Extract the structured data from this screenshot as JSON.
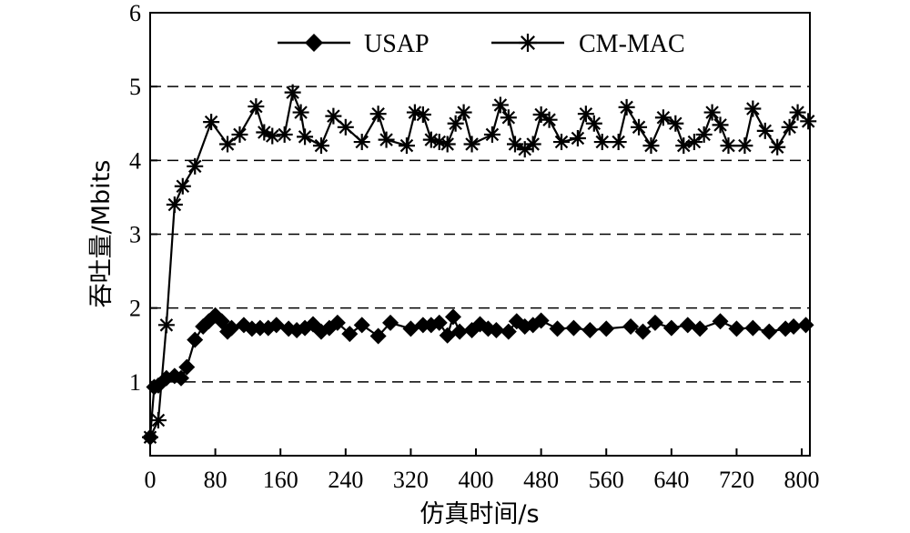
{
  "chart_data": {
    "type": "line",
    "title": "",
    "xlabel": "仿真时间/s",
    "ylabel": "吞吐量/Mbits",
    "xlim": [
      0,
      810
    ],
    "ylim": [
      0,
      6
    ],
    "xticks": [
      0,
      80,
      160,
      240,
      320,
      400,
      480,
      560,
      640,
      720,
      800
    ],
    "yticks": [
      1,
      2,
      3,
      4,
      5,
      6
    ],
    "grid": "horizontal-dashed",
    "legend_position": "top",
    "series": [
      {
        "name": "USAP",
        "marker": "diamond",
        "color": "#000000",
        "points": [
          [
            0,
            0.25
          ],
          [
            5,
            0.93
          ],
          [
            10,
            0.95
          ],
          [
            20,
            1.05
          ],
          [
            30,
            1.08
          ],
          [
            38,
            1.05
          ],
          [
            45,
            1.2
          ],
          [
            55,
            1.57
          ],
          [
            65,
            1.75
          ],
          [
            72,
            1.82
          ],
          [
            80,
            1.9
          ],
          [
            88,
            1.82
          ],
          [
            95,
            1.68
          ],
          [
            100,
            1.73
          ],
          [
            115,
            1.77
          ],
          [
            125,
            1.72
          ],
          [
            135,
            1.73
          ],
          [
            145,
            1.73
          ],
          [
            155,
            1.77
          ],
          [
            170,
            1.72
          ],
          [
            180,
            1.7
          ],
          [
            190,
            1.73
          ],
          [
            200,
            1.78
          ],
          [
            210,
            1.68
          ],
          [
            220,
            1.73
          ],
          [
            230,
            1.8
          ],
          [
            245,
            1.65
          ],
          [
            260,
            1.77
          ],
          [
            280,
            1.62
          ],
          [
            295,
            1.8
          ],
          [
            320,
            1.72
          ],
          [
            335,
            1.77
          ],
          [
            345,
            1.77
          ],
          [
            355,
            1.8
          ],
          [
            365,
            1.63
          ],
          [
            372,
            1.88
          ],
          [
            380,
            1.68
          ],
          [
            395,
            1.7
          ],
          [
            405,
            1.78
          ],
          [
            415,
            1.72
          ],
          [
            425,
            1.7
          ],
          [
            440,
            1.68
          ],
          [
            450,
            1.82
          ],
          [
            460,
            1.75
          ],
          [
            470,
            1.77
          ],
          [
            480,
            1.83
          ],
          [
            500,
            1.72
          ],
          [
            520,
            1.73
          ],
          [
            540,
            1.7
          ],
          [
            560,
            1.72
          ],
          [
            590,
            1.75
          ],
          [
            605,
            1.68
          ],
          [
            620,
            1.8
          ],
          [
            640,
            1.73
          ],
          [
            660,
            1.77
          ],
          [
            675,
            1.72
          ],
          [
            700,
            1.82
          ],
          [
            720,
            1.72
          ],
          [
            740,
            1.73
          ],
          [
            760,
            1.68
          ],
          [
            780,
            1.72
          ],
          [
            790,
            1.75
          ],
          [
            805,
            1.77
          ]
        ]
      },
      {
        "name": "CM-MAC",
        "marker": "asterisk",
        "color": "#000000",
        "points": [
          [
            0,
            0.25
          ],
          [
            10,
            0.48
          ],
          [
            20,
            1.77
          ],
          [
            30,
            3.4
          ],
          [
            40,
            3.65
          ],
          [
            55,
            3.92
          ],
          [
            75,
            4.52
          ],
          [
            95,
            4.22
          ],
          [
            110,
            4.35
          ],
          [
            130,
            4.73
          ],
          [
            140,
            4.38
          ],
          [
            150,
            4.33
          ],
          [
            165,
            4.35
          ],
          [
            175,
            4.92
          ],
          [
            185,
            4.65
          ],
          [
            190,
            4.32
          ],
          [
            210,
            4.2
          ],
          [
            225,
            4.6
          ],
          [
            240,
            4.45
          ],
          [
            260,
            4.25
          ],
          [
            280,
            4.63
          ],
          [
            290,
            4.28
          ],
          [
            315,
            4.2
          ],
          [
            325,
            4.65
          ],
          [
            335,
            4.62
          ],
          [
            345,
            4.28
          ],
          [
            355,
            4.25
          ],
          [
            365,
            4.22
          ],
          [
            375,
            4.5
          ],
          [
            385,
            4.65
          ],
          [
            395,
            4.22
          ],
          [
            420,
            4.35
          ],
          [
            430,
            4.75
          ],
          [
            440,
            4.58
          ],
          [
            448,
            4.22
          ],
          [
            460,
            4.15
          ],
          [
            470,
            4.22
          ],
          [
            480,
            4.62
          ],
          [
            490,
            4.55
          ],
          [
            505,
            4.25
          ],
          [
            525,
            4.3
          ],
          [
            535,
            4.63
          ],
          [
            545,
            4.5
          ],
          [
            555,
            4.25
          ],
          [
            575,
            4.25
          ],
          [
            585,
            4.72
          ],
          [
            600,
            4.45
          ],
          [
            615,
            4.2
          ],
          [
            630,
            4.58
          ],
          [
            645,
            4.5
          ],
          [
            655,
            4.2
          ],
          [
            668,
            4.25
          ],
          [
            680,
            4.35
          ],
          [
            690,
            4.65
          ],
          [
            700,
            4.48
          ],
          [
            710,
            4.2
          ],
          [
            730,
            4.2
          ],
          [
            740,
            4.7
          ],
          [
            755,
            4.4
          ],
          [
            770,
            4.18
          ],
          [
            785,
            4.45
          ],
          [
            795,
            4.65
          ],
          [
            808,
            4.53
          ]
        ]
      }
    ]
  }
}
